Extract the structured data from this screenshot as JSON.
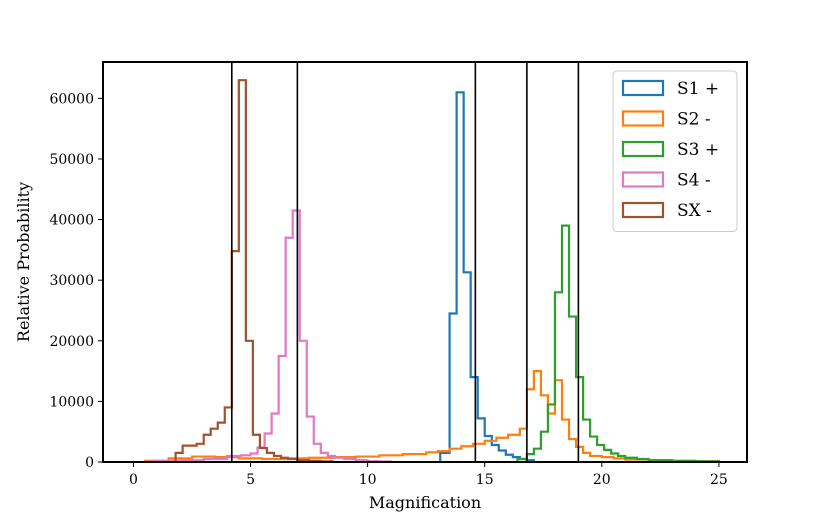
{
  "chart_data": {
    "type": "histogram-step",
    "xlabel": "Magnification",
    "ylabel": "Relative Probability",
    "xlim": [
      -1.3,
      26.2
    ],
    "ylim": [
      0,
      66000
    ],
    "xticks": [
      0,
      5,
      10,
      15,
      20,
      25
    ],
    "yticks": [
      0,
      10000,
      20000,
      30000,
      40000,
      50000,
      60000
    ],
    "legend_position": "upper right",
    "grid": false,
    "vlines": [
      4.2,
      7.0,
      14.6,
      16.8,
      19.0
    ],
    "series": [
      {
        "name": "S1 +",
        "color": "#1f77b4",
        "edges": [
          13.1,
          13.5,
          13.8,
          14.1,
          14.4,
          14.7,
          15.0,
          15.3,
          15.6,
          15.9,
          16.2,
          16.5,
          16.8,
          17.1
        ],
        "values": [
          1500,
          24500,
          61000,
          31300,
          14000,
          7200,
          4300,
          2800,
          1900,
          1200,
          800,
          500,
          300
        ]
      },
      {
        "name": "S2 -",
        "color": "#ff7f0e",
        "edges": [
          0.5,
          1.5,
          2.5,
          3.5,
          4.5,
          5.5,
          6.5,
          7.5,
          8.5,
          9.5,
          10.5,
          11.5,
          12.5,
          13.0,
          13.5,
          14.0,
          14.5,
          15.0,
          15.5,
          16.0,
          16.5,
          16.8,
          17.1,
          17.4,
          17.7,
          18.0,
          18.3,
          18.6,
          18.9,
          19.2,
          19.5,
          20.0,
          20.5,
          21.0,
          22.0,
          23.0,
          24.0,
          25.0
        ],
        "values": [
          200,
          600,
          900,
          800,
          600,
          500,
          600,
          700,
          800,
          900,
          1100,
          1300,
          1600,
          1800,
          2200,
          2600,
          3000,
          3500,
          4000,
          4500,
          5500,
          12000,
          15000,
          11000,
          8000,
          13500,
          7000,
          3800,
          2500,
          1500,
          1000,
          800,
          600,
          400,
          300,
          200,
          150
        ]
      },
      {
        "name": "S3 +",
        "color": "#2ca02c",
        "edges": [
          16.4,
          16.8,
          17.1,
          17.4,
          17.7,
          18.0,
          18.3,
          18.6,
          18.9,
          19.2,
          19.5,
          19.8,
          20.1,
          20.4,
          20.7,
          21.0,
          21.5,
          22.0,
          23.0,
          24.0,
          25.0
        ],
        "values": [
          500,
          1300,
          2200,
          5000,
          9500,
          28000,
          39000,
          24000,
          14000,
          7000,
          4200,
          2800,
          2000,
          1400,
          1000,
          700,
          500,
          300,
          200,
          100
        ]
      },
      {
        "name": "S4 -",
        "color": "#e377c2",
        "edges": [
          0.8,
          2.0,
          3.0,
          4.0,
          4.6,
          5.0,
          5.3,
          5.6,
          5.9,
          6.2,
          6.5,
          6.8,
          7.1,
          7.4,
          7.7,
          8.0,
          8.3,
          8.6,
          9.0,
          9.5,
          10.0,
          10.5,
          11.0
        ],
        "values": [
          200,
          300,
          500,
          1000,
          1100,
          1400,
          2400,
          4700,
          8000,
          17500,
          37000,
          41500,
          20000,
          7500,
          3000,
          1500,
          1000,
          700,
          500,
          300,
          150,
          80
        ]
      },
      {
        "name": "SX -",
        "color": "#a0522d",
        "edges": [
          1.8,
          2.1,
          2.7,
          3.0,
          3.3,
          3.6,
          3.9,
          4.2,
          4.5,
          4.8,
          5.1,
          5.4,
          5.7,
          6.0,
          6.3,
          6.6,
          7.0,
          7.5,
          8.0,
          8.5
        ],
        "values": [
          1500,
          2700,
          3000,
          4500,
          5500,
          6500,
          9000,
          34800,
          63000,
          20000,
          4500,
          2300,
          1500,
          1000,
          700,
          500,
          300,
          200,
          100
        ]
      }
    ]
  }
}
